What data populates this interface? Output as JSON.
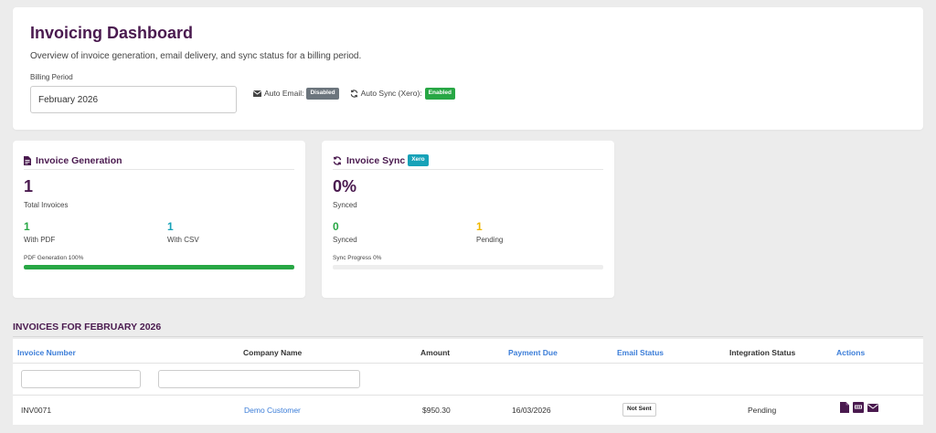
{
  "header": {
    "title": "Invoicing Dashboard",
    "subtitle": "Overview of invoice generation, email delivery, and sync status for a billing period.",
    "billing_label": "Billing Period",
    "billing_value": "February 2026",
    "auto_email_label": "Auto Email:",
    "auto_email_status": "Disabled",
    "auto_sync_label": "Auto Sync (Xero):",
    "auto_sync_status": "Enabled"
  },
  "generation": {
    "title": "Invoice Generation",
    "total": "1",
    "total_label": "Total Invoices",
    "with_pdf": "1",
    "with_pdf_label": "With PDF",
    "with_csv": "1",
    "with_csv_label": "With CSV",
    "progress_label": "PDF Generation 100%",
    "progress_fraction": 1.0
  },
  "sync": {
    "title": "Invoice Sync",
    "badge": "Xero",
    "percent": "0%",
    "percent_label": "Synced",
    "synced": "0",
    "synced_label": "Synced",
    "pending": "1",
    "pending_label": "Pending",
    "progress_label": "Sync Progress 0%",
    "progress_fraction": 0.0
  },
  "table": {
    "section_title": "INVOICES FOR FEBRUARY 2026",
    "headers": {
      "invoice_number": "Invoice Number",
      "company_name": "Company Name",
      "amount": "Amount",
      "payment_due": "Payment Due",
      "email_status": "Email Status",
      "integration_status": "Integration Status",
      "actions": "Actions"
    },
    "rows": [
      {
        "invoice_number": "INV0071",
        "company_name": "Demo Customer",
        "amount": "$950.30",
        "payment_due": "16/03/2026",
        "email_status": "Not Sent",
        "integration_status": "Pending"
      }
    ]
  },
  "colors": {
    "brand": "#4a1a4f",
    "link": "#3b7dd8",
    "success": "#28a745",
    "info": "#17a2b8",
    "warning": "#f0b800",
    "muted": "#6c757d"
  }
}
